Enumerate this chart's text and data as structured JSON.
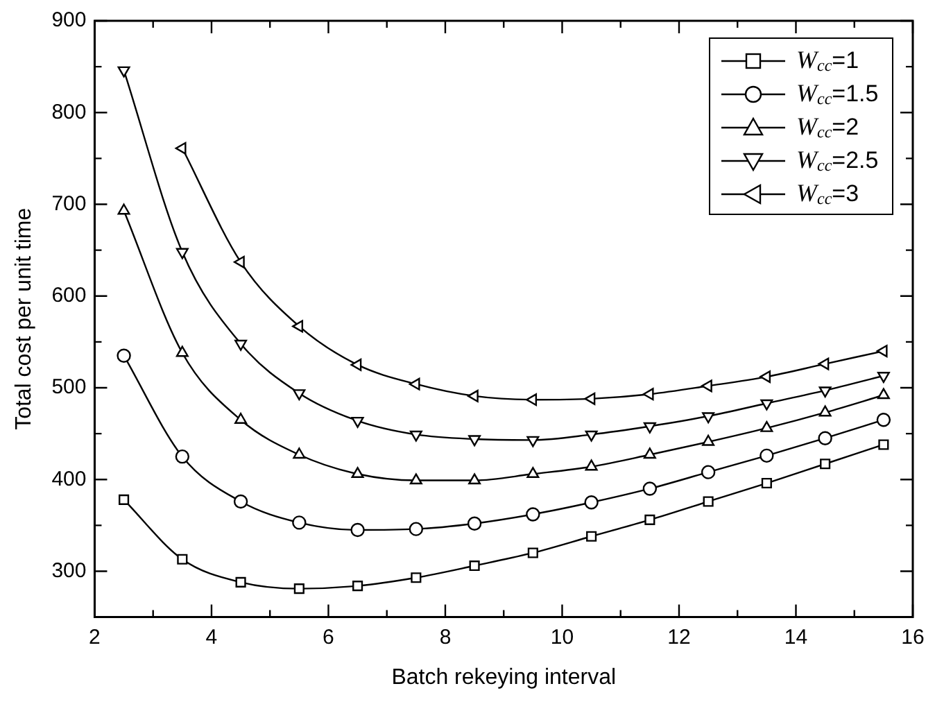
{
  "chart_data": {
    "type": "line",
    "xlabel": "Batch rekeying interval",
    "ylabel": "Total cost per unit time",
    "x": [
      2.5,
      3.5,
      4.5,
      5.5,
      6.5,
      7.5,
      8.5,
      9.5,
      10.5,
      11.5,
      12.5,
      13.5,
      14.5,
      15.5
    ],
    "xlim": [
      2,
      16
    ],
    "xticks": [
      2,
      {
        "value": 3,
        "label": null
      },
      4,
      {
        "value": 5,
        "label": null
      },
      6,
      {
        "value": 7,
        "label": null
      },
      8,
      {
        "value": 9,
        "label": null
      },
      10,
      {
        "value": 11,
        "label": null
      },
      12,
      {
        "value": 13,
        "label": null
      },
      14,
      {
        "value": 15,
        "label": null
      },
      16
    ],
    "ylim": [
      250,
      900
    ],
    "yticks": [
      {
        "value": 250,
        "label": null
      },
      300,
      {
        "value": 350,
        "label": null
      },
      400,
      {
        "value": 450,
        "label": null
      },
      500,
      {
        "value": 550,
        "label": null
      },
      600,
      {
        "value": 650,
        "label": null
      },
      700,
      {
        "value": 750,
        "label": null
      },
      800,
      {
        "value": 850,
        "label": null
      },
      900
    ],
    "grid": false,
    "legend": "top right",
    "line_style": "solid",
    "series": [
      {
        "name": "W$_{cc}$=1",
        "color": "#000000",
        "marker": "square",
        "values": [
          378,
          313,
          288,
          281,
          284,
          293,
          306,
          320,
          338,
          356,
          376,
          396,
          417,
          438
        ]
      },
      {
        "name": "W$_{cc}$=1.5",
        "color": "#000000",
        "marker": "circle",
        "values": [
          535,
          425,
          376,
          353,
          345,
          346,
          352,
          362,
          375,
          390,
          408,
          426,
          445,
          465
        ]
      },
      {
        "name": "W$_{cc}$=2",
        "color": "#000000",
        "marker": "triangle",
        "values": [
          693,
          538,
          465,
          427,
          406,
          399,
          399,
          406,
          414,
          427,
          441,
          456,
          473,
          492
        ]
      },
      {
        "name": "W$_{cc}$=2.5",
        "color": "#000000",
        "marker": "triangle-down",
        "values": [
          846,
          648,
          548,
          494,
          464,
          449,
          444,
          443,
          449,
          458,
          469,
          483,
          497,
          513
        ]
      },
      {
        "name": "W$_{cc}$=3",
        "color": "#000000",
        "marker": "triangle-left",
        "values": [
          null,
          761,
          637,
          567,
          525,
          504,
          491,
          487,
          488,
          493,
          502,
          512,
          526,
          540
        ]
      }
    ]
  }
}
